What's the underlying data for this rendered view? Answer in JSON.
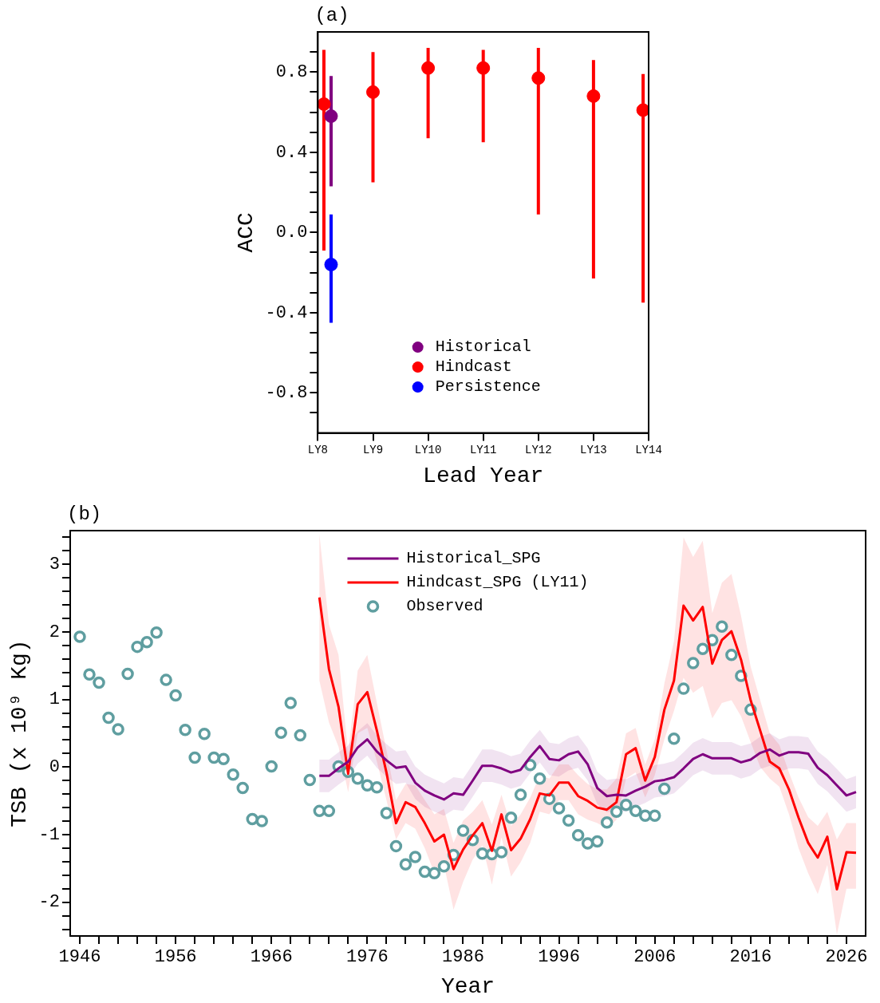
{
  "chart_data": [
    {
      "type": "scatter",
      "title": "(a)",
      "xlabel": "Lead Year",
      "ylabel": "ACC",
      "ylim": [
        -1,
        1
      ],
      "categories": [
        "LY8",
        "LY9",
        "LY10",
        "LY11",
        "LY12",
        "LY13",
        "LY14"
      ],
      "yticks": [
        {
          "value": -0.9,
          "label": null
        },
        -0.8,
        {
          "value": -0.7,
          "label": null
        },
        {
          "value": -0.6,
          "label": null
        },
        {
          "value": -0.5,
          "label": null
        },
        -0.4,
        {
          "value": -0.3,
          "label": null
        },
        {
          "value": -0.2,
          "label": null
        },
        {
          "value": -0.1,
          "label": null
        },
        {
          "value": 0,
          "label": "0.0"
        },
        {
          "value": 0.1,
          "label": null
        },
        {
          "value": 0.2,
          "label": null
        },
        {
          "value": 0.3,
          "label": null
        },
        0.4,
        {
          "value": 0.5,
          "label": null
        },
        {
          "value": 0.6,
          "label": null
        },
        {
          "value": 0.7,
          "label": null
        },
        0.8,
        {
          "value": 0.9,
          "label": null
        }
      ],
      "marker": "circle",
      "legend": "bottom",
      "grid": false,
      "series": [
        {
          "name": "Historical",
          "color": "#800080",
          "x": [
            "LY8"
          ],
          "values": [
            0.58
          ],
          "errors": [
            [
              0.23,
              0.78
            ]
          ]
        },
        {
          "name": "Hindcast",
          "color": "#ff0000",
          "x": [
            "LY8",
            "LY9",
            "LY10",
            "LY11",
            "LY12",
            "LY13",
            "LY14"
          ],
          "values": [
            0.64,
            0.7,
            0.82,
            0.82,
            0.77,
            0.68,
            0.61
          ],
          "errors": [
            [
              -0.09,
              0.91
            ],
            [
              0.25,
              0.9
            ],
            [
              0.47,
              0.92
            ],
            [
              0.45,
              0.91
            ],
            [
              0.09,
              0.92
            ],
            [
              -0.23,
              0.86
            ],
            [
              -0.35,
              0.79
            ]
          ]
        },
        {
          "name": "Persistence",
          "color": "#0000ff",
          "x": [
            "LY8"
          ],
          "values": [
            -0.16
          ],
          "errors": [
            [
              -0.45,
              0.09
            ]
          ]
        }
      ]
    },
    {
      "type": "line",
      "title": "(b)",
      "xlabel": "Year",
      "ylabel": "TSB (x 10⁹ Kg)",
      "xlim": [
        1945,
        2028
      ],
      "ylim": [
        -2.5,
        3.5
      ],
      "xticks": [
        1946,
        {
          "value": 1948,
          "label": null
        },
        {
          "value": 1950,
          "label": null
        },
        {
          "value": 1952,
          "label": null
        },
        {
          "value": 1954,
          "label": null
        },
        1956,
        {
          "value": 1958,
          "label": null
        },
        {
          "value": 1960,
          "label": null
        },
        {
          "value": 1962,
          "label": null
        },
        {
          "value": 1964,
          "label": null
        },
        1966,
        {
          "value": 1968,
          "label": null
        },
        {
          "value": 1970,
          "label": null
        },
        {
          "value": 1972,
          "label": null
        },
        {
          "value": 1974,
          "label": null
        },
        1976,
        {
          "value": 1978,
          "label": null
        },
        {
          "value": 1980,
          "label": null
        },
        {
          "value": 1982,
          "label": null
        },
        {
          "value": 1984,
          "label": null
        },
        1986,
        {
          "value": 1988,
          "label": null
        },
        {
          "value": 1990,
          "label": null
        },
        {
          "value": 1992,
          "label": null
        },
        {
          "value": 1994,
          "label": null
        },
        1996,
        {
          "value": 1998,
          "label": null
        },
        {
          "value": 2000,
          "label": null
        },
        {
          "value": 2002,
          "label": null
        },
        {
          "value": 2004,
          "label": null
        },
        2006,
        {
          "value": 2008,
          "label": null
        },
        {
          "value": 2010,
          "label": null
        },
        {
          "value": 2012,
          "label": null
        },
        {
          "value": 2014,
          "label": null
        },
        2016,
        {
          "value": 2018,
          "label": null
        },
        {
          "value": 2020,
          "label": null
        },
        {
          "value": 2022,
          "label": null
        },
        {
          "value": 2024,
          "label": null
        },
        2026
      ],
      "yticks": [
        {
          "value": -2.4,
          "label": null
        },
        {
          "value": -2.2,
          "label": null
        },
        -2,
        {
          "value": -1.8,
          "label": null
        },
        {
          "value": -1.6,
          "label": null
        },
        {
          "value": -1.4,
          "label": null
        },
        {
          "value": -1.2,
          "label": null
        },
        -1,
        {
          "value": -0.8,
          "label": null
        },
        {
          "value": -0.6,
          "label": null
        },
        {
          "value": -0.4,
          "label": null
        },
        {
          "value": -0.2,
          "label": null
        },
        0,
        {
          "value": 0.2,
          "label": null
        },
        {
          "value": 0.4,
          "label": null
        },
        {
          "value": 0.6,
          "label": null
        },
        {
          "value": 0.8,
          "label": null
        },
        1,
        {
          "value": 1.2,
          "label": null
        },
        {
          "value": 1.4,
          "label": null
        },
        {
          "value": 1.6,
          "label": null
        },
        {
          "value": 1.8,
          "label": null
        },
        2,
        {
          "value": 2.2,
          "label": null
        },
        {
          "value": 2.4,
          "label": null
        },
        {
          "value": 2.6,
          "label": null
        },
        {
          "value": 2.8,
          "label": null
        },
        3,
        {
          "value": 3.2,
          "label": null
        },
        {
          "value": 3.4,
          "label": null
        }
      ],
      "legend": "top",
      "grid": false,
      "series": [
        {
          "name": "Historical_SPG",
          "color": "#800080",
          "x": [
            1971,
            1972,
            1973,
            1974,
            1975,
            1976,
            1977,
            1978,
            1979,
            1980,
            1981,
            1982,
            1983,
            1984,
            1985,
            1986,
            1987,
            1988,
            1989,
            1990,
            1991,
            1992,
            1993,
            1994,
            1995,
            1996,
            1997,
            1998,
            1999,
            2000,
            2001,
            2002,
            2003,
            2004,
            2005,
            2006,
            2007,
            2008,
            2009,
            2010,
            2011,
            2012,
            2013,
            2014,
            2015,
            2016,
            2017,
            2018,
            2019,
            2020,
            2021,
            2022,
            2023,
            2024,
            2025,
            2026,
            2027
          ],
          "values": [
            -0.13,
            -0.13,
            -0.02,
            0.08,
            0.29,
            0.41,
            0.23,
            0.1,
            -0.01,
            0.01,
            -0.23,
            -0.35,
            -0.42,
            -0.48,
            -0.39,
            -0.41,
            -0.2,
            0.02,
            0.02,
            -0.02,
            -0.08,
            -0.04,
            0.15,
            0.31,
            0.12,
            0.1,
            0.19,
            0.23,
            0.04,
            -0.31,
            -0.43,
            -0.41,
            -0.42,
            -0.35,
            -0.29,
            -0.21,
            -0.19,
            -0.15,
            -0.02,
            0.12,
            0.19,
            0.13,
            0.13,
            0.13,
            0.07,
            0.11,
            0.21,
            0.26,
            0.17,
            0.22,
            0.22,
            0.2,
            -0.01,
            -0.12,
            -0.27,
            -0.42,
            -0.37
          ],
          "upper": [
            0.11,
            0.11,
            0.22,
            0.32,
            0.53,
            0.65,
            0.47,
            0.34,
            0.23,
            0.25,
            0.01,
            -0.11,
            -0.18,
            -0.24,
            -0.15,
            -0.17,
            0.04,
            0.26,
            0.26,
            0.22,
            0.16,
            0.2,
            0.39,
            0.55,
            0.36,
            0.34,
            0.43,
            0.47,
            0.28,
            -0.07,
            -0.19,
            -0.17,
            -0.18,
            -0.11,
            -0.05,
            0.03,
            0.05,
            0.09,
            0.22,
            0.36,
            0.43,
            0.37,
            0.37,
            0.37,
            0.31,
            0.35,
            0.45,
            0.5,
            0.41,
            0.46,
            0.46,
            0.44,
            0.23,
            0.12,
            -0.03,
            -0.18,
            -0.13
          ],
          "lower": [
            -0.37,
            -0.37,
            -0.26,
            -0.16,
            0.05,
            0.17,
            -0.01,
            -0.14,
            -0.25,
            -0.23,
            -0.47,
            -0.59,
            -0.66,
            -0.72,
            -0.63,
            -0.65,
            -0.44,
            -0.22,
            -0.22,
            -0.26,
            -0.32,
            -0.28,
            -0.09,
            0.07,
            -0.12,
            -0.14,
            -0.05,
            -0.01,
            -0.2,
            -0.55,
            -0.67,
            -0.65,
            -0.66,
            -0.59,
            -0.53,
            -0.45,
            -0.43,
            -0.39,
            -0.26,
            -0.12,
            -0.05,
            -0.11,
            -0.11,
            -0.11,
            -0.17,
            -0.13,
            -0.03,
            0.02,
            -0.07,
            -0.02,
            -0.02,
            -0.04,
            -0.25,
            -0.36,
            -0.51,
            -0.66,
            -0.61
          ]
        },
        {
          "name": "Hindcast_SPG (LY11)",
          "color": "#ff0000",
          "x": [
            1971,
            1972,
            1973,
            1974,
            1975,
            1976,
            1977,
            1978,
            1979,
            1980,
            1981,
            1982,
            1983,
            1984,
            1985,
            1986,
            1987,
            1988,
            1989,
            1990,
            1991,
            1992,
            1993,
            1994,
            1995,
            1996,
            1997,
            1998,
            1999,
            2000,
            2001,
            2002,
            2003,
            2004,
            2005,
            2006,
            2007,
            2008,
            2009,
            2010,
            2011,
            2012,
            2013,
            2014,
            2015,
            2016,
            2017,
            2018,
            2019,
            2020,
            2021,
            2022,
            2023,
            2024,
            2025,
            2026,
            2027
          ],
          "values": [
            2.51,
            1.45,
            0.89,
            -0.1,
            0.93,
            1.11,
            0.54,
            -0.08,
            -0.83,
            -0.52,
            -0.59,
            -0.83,
            -1.1,
            -1.0,
            -1.51,
            -1.22,
            -1.01,
            -0.83,
            -1.24,
            -0.7,
            -1.23,
            -1.06,
            -0.77,
            -0.39,
            -0.42,
            -0.23,
            -0.23,
            -0.43,
            -0.5,
            -0.6,
            -0.63,
            -0.52,
            0.19,
            0.28,
            -0.2,
            0.15,
            0.85,
            1.28,
            2.39,
            2.17,
            2.37,
            1.53,
            1.88,
            2.01,
            1.59,
            0.99,
            0.54,
            0.08,
            -0.02,
            -0.33,
            -0.75,
            -1.12,
            -1.34,
            -1.03,
            -1.81,
            -1.26,
            -1.27
          ],
          "upper": [
            3.45,
            2.11,
            1.66,
            0.21,
            1.43,
            1.66,
            0.95,
            0.25,
            -0.49,
            -0.25,
            -0.27,
            -0.49,
            -0.7,
            -0.62,
            -1.12,
            -0.79,
            -0.66,
            -0.49,
            -0.85,
            -0.41,
            -0.87,
            -0.7,
            -0.45,
            -0.12,
            -0.17,
            0.04,
            0.04,
            -0.12,
            -0.25,
            -0.33,
            -0.33,
            -0.17,
            0.5,
            0.58,
            0.04,
            0.41,
            1.24,
            1.86,
            3.4,
            3.11,
            3.35,
            2.28,
            2.73,
            2.86,
            2.24,
            1.49,
            0.99,
            0.5,
            0.33,
            -0.08,
            -0.45,
            -0.74,
            -0.87,
            -0.66,
            -1.07,
            -0.83,
            -0.83
          ],
          "lower": [
            1.28,
            0.66,
            0.3,
            -0.37,
            0.5,
            0.58,
            0.08,
            -0.49,
            -1.07,
            -0.83,
            -0.91,
            -1.2,
            -1.57,
            -1.45,
            -2.11,
            -1.7,
            -1.37,
            -1.16,
            -1.74,
            -1.04,
            -1.62,
            -1.41,
            -1.12,
            -0.66,
            -0.7,
            -0.49,
            -0.49,
            -0.7,
            -0.78,
            -0.83,
            -0.91,
            -0.78,
            -0.17,
            -0.08,
            -0.45,
            -0.12,
            0.41,
            0.83,
            1.32,
            1.1,
            1.2,
            0.72,
            0.95,
            0.99,
            0.75,
            0.37,
            0.0,
            -0.17,
            -0.29,
            -0.7,
            -1.2,
            -1.57,
            -1.88,
            -1.45,
            -2.48,
            -1.8,
            -1.8
          ]
        },
        {
          "name": "Observed",
          "type": "scatter",
          "marker": "circle",
          "color": "#5f9ea0",
          "x": [
            1946,
            1947,
            1948,
            1949,
            1950,
            1951,
            1952,
            1953,
            1954,
            1955,
            1956,
            1957,
            1958,
            1959,
            1960,
            1961,
            1962,
            1963,
            1964,
            1965,
            1966,
            1967,
            1968,
            1969,
            1970,
            1971,
            1972,
            1973,
            1974,
            1975,
            1976,
            1977,
            1978,
            1979,
            1980,
            1981,
            1982,
            1983,
            1984,
            1985,
            1986,
            1987,
            1988,
            1989,
            1990,
            1991,
            1992,
            1993,
            1994,
            1995,
            1996,
            1997,
            1998,
            1999,
            2000,
            2001,
            2002,
            2003,
            2004,
            2005,
            2006,
            2007,
            2008,
            2009,
            2010,
            2011,
            2012,
            2013,
            2014,
            2015,
            2016
          ],
          "values": [
            1.93,
            1.37,
            1.25,
            0.73,
            0.56,
            1.38,
            1.78,
            1.85,
            1.99,
            1.29,
            1.06,
            0.55,
            0.14,
            0.49,
            0.14,
            0.12,
            -0.11,
            -0.31,
            -0.77,
            -0.8,
            0.01,
            0.51,
            0.95,
            0.47,
            -0.19,
            -0.65,
            -0.65,
            0.01,
            -0.07,
            -0.17,
            -0.27,
            -0.3,
            -0.68,
            -1.17,
            -1.44,
            -1.33,
            -1.55,
            -1.57,
            -1.47,
            -1.3,
            -0.94,
            -1.08,
            -1.28,
            -1.29,
            -1.26,
            -0.75,
            -0.41,
            0.03,
            -0.17,
            -0.47,
            -0.61,
            -0.79,
            -1.01,
            -1.13,
            -1.1,
            -0.82,
            -0.66,
            -0.56,
            -0.65,
            -0.72,
            -0.72,
            -0.32,
            0.42,
            1.16,
            1.54,
            1.75,
            1.88,
            2.08,
            1.66,
            1.35,
            0.85
          ]
        }
      ]
    }
  ]
}
